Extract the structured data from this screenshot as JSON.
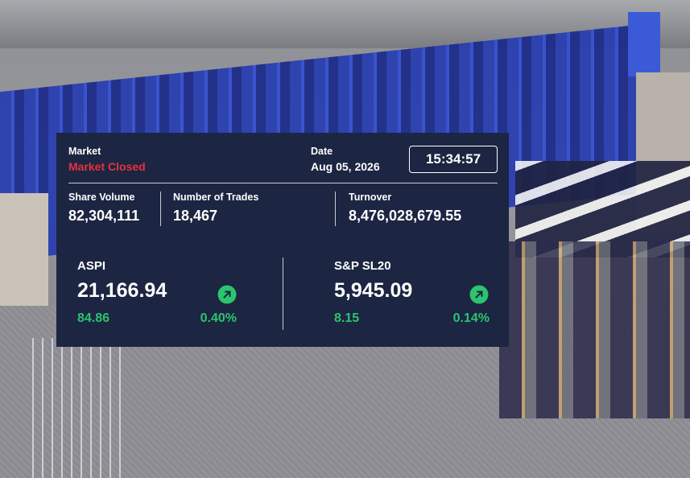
{
  "market": {
    "label": "Market",
    "status": "Market Closed"
  },
  "date": {
    "label": "Date",
    "value": "Aug 05, 2026"
  },
  "time": "15:34:57",
  "stats": [
    {
      "label": "Share Volume",
      "value": "82,304,111"
    },
    {
      "label": "Number of Trades",
      "value": "18,467"
    },
    {
      "label": "Turnover",
      "value": "8,476,028,679.55"
    }
  ],
  "indices": [
    {
      "name": "ASPI",
      "value": "21,166.94",
      "change": "84.86",
      "percent": "0.40%"
    },
    {
      "name": "S&P SL20",
      "value": "5,945.09",
      "change": "8.15",
      "percent": "0.14%"
    }
  ]
}
